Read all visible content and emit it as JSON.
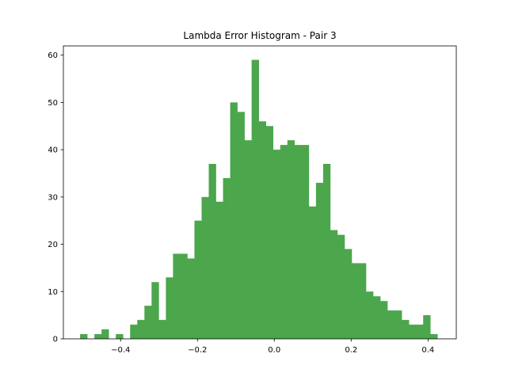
{
  "chart_data": {
    "type": "bar",
    "title": "Lambda Error Histogram - Pair 3",
    "xlabel": "",
    "ylabel": "",
    "bar_color": "#4ca64c",
    "xlim": [
      -0.5489,
      0.4736
    ],
    "ylim": [
      0,
      61.95
    ],
    "x_ticks": [
      -0.4,
      -0.2,
      0.0,
      0.2,
      0.4
    ],
    "x_tick_labels": [
      "−0.4",
      "−0.2",
      "0.0",
      "0.2",
      "0.4"
    ],
    "y_ticks": [
      0,
      10,
      20,
      30,
      40,
      50,
      60
    ],
    "y_tick_labels": [
      "0",
      "10",
      "20",
      "30",
      "40",
      "50",
      "60"
    ],
    "grid": false,
    "legend": "none",
    "bin_start": -0.5054,
    "bin_width": 0.0186,
    "values": [
      1,
      0,
      1,
      2,
      0,
      1,
      0,
      3,
      4,
      7,
      12,
      4,
      13,
      18,
      18,
      17,
      25,
      30,
      37,
      29,
      34,
      50,
      48,
      42,
      59,
      46,
      45,
      40,
      41,
      42,
      41,
      41,
      28,
      33,
      37,
      23,
      22,
      19,
      16,
      16,
      10,
      9,
      8,
      6,
      6,
      4,
      3,
      3,
      5,
      1
    ]
  }
}
